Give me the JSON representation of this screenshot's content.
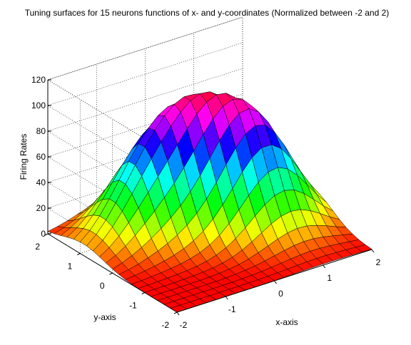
{
  "chart_data": {
    "type": "surface",
    "title": "Tuning surfaces for 15 neurons functions of x- and y-coordinates (Normalized between -2 and 2)",
    "xlabel": "x-axis",
    "ylabel": "y-axis",
    "zlabel": "Firing Rates",
    "xlim": [
      -2,
      2
    ],
    "ylim": [
      -2,
      2
    ],
    "zlim": [
      0,
      120
    ],
    "xticks": [
      "-2",
      "-1",
      "0",
      "1",
      "2"
    ],
    "yticks": [
      "-2",
      "-1",
      "0",
      "1",
      "2"
    ],
    "zticks": [
      "0",
      "20",
      "40",
      "60",
      "80",
      "100",
      "120"
    ],
    "grid": true,
    "colormap": "hsv",
    "grid_resolution": 21,
    "peaks": [
      {
        "x": -0.9,
        "y": 0.9,
        "z": 96
      },
      {
        "x": -0.1,
        "y": 1.0,
        "z": 103
      },
      {
        "x": 0.3,
        "y": 0.5,
        "z": 101
      },
      {
        "x": 0.9,
        "y": 0.2,
        "z": 92
      },
      {
        "x": 1.1,
        "y": -0.3,
        "z": 86
      }
    ],
    "approx_max_z": 104
  }
}
